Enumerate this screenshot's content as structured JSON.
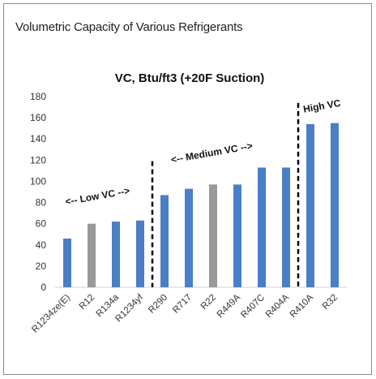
{
  "panel": {
    "title": "Volumetric Capacity of Various Refrigerants"
  },
  "chart_data": {
    "type": "bar",
    "title": "VC, Btu/ft3 (+20F Suction)",
    "xlabel": "",
    "ylabel": "",
    "ylim": [
      0,
      180
    ],
    "yticks": [
      0,
      20,
      40,
      60,
      80,
      100,
      120,
      140,
      160,
      180
    ],
    "grid": false,
    "categories": [
      "R1234ze(E)",
      "R12",
      "R134a",
      "R1234yf",
      "R290",
      "R717",
      "R22",
      "R449A",
      "R407C",
      "R404A",
      "R410A",
      "R32"
    ],
    "values": [
      46,
      60,
      62,
      63,
      87,
      93,
      97,
      97,
      113,
      113,
      154,
      155
    ],
    "bar_colors": [
      "#4a7ec7",
      "#999999",
      "#4a7ec7",
      "#4a7ec7",
      "#4a7ec7",
      "#4a7ec7",
      "#999999",
      "#4a7ec7",
      "#4a7ec7",
      "#4a7ec7",
      "#4a7ec7",
      "#4a7ec7"
    ],
    "annotations": [
      "<-- Low VC -->",
      "<-- Medium VC -->",
      "High VC"
    ],
    "dividers_after_category": [
      "R1234yf",
      "R404A"
    ]
  }
}
